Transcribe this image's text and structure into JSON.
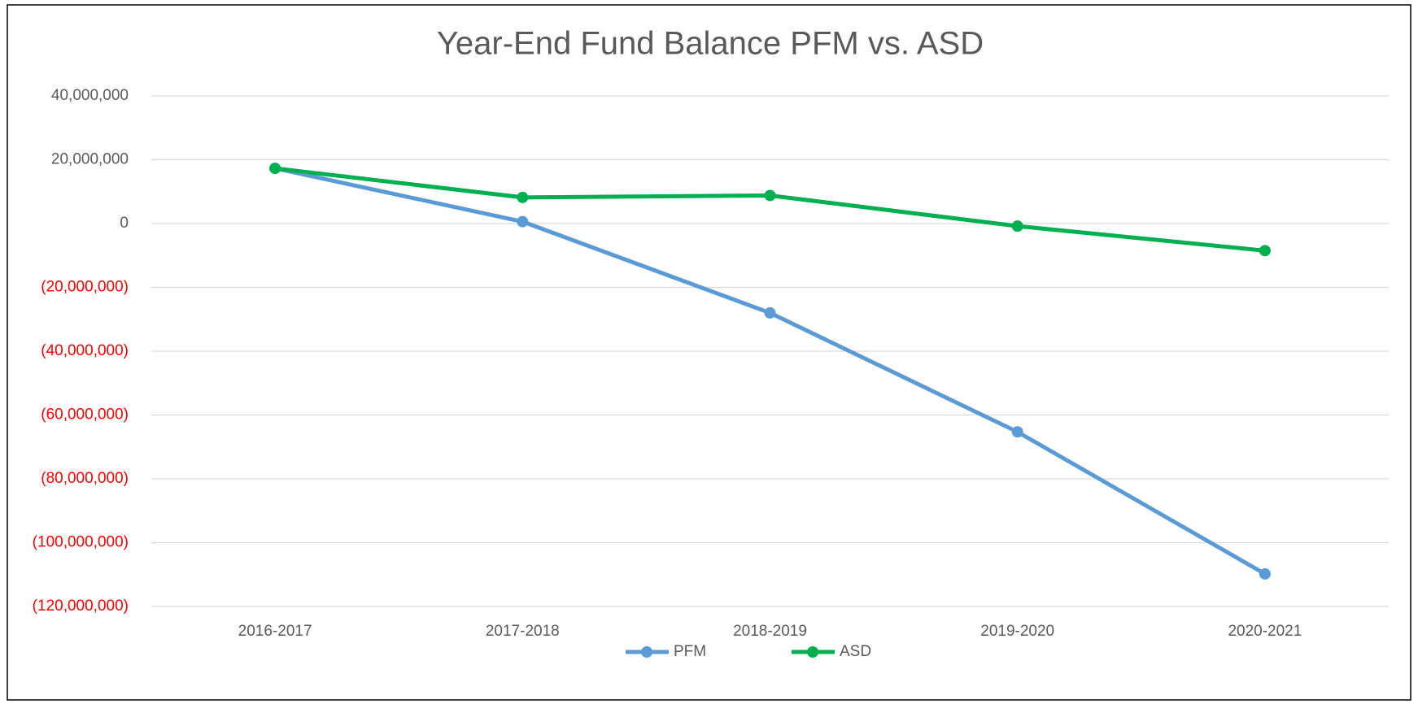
{
  "chart_data": {
    "type": "line",
    "title": "Year-End Fund Balance PFM vs. ASD",
    "categories": [
      "2016-2017",
      "2017-2018",
      "2018-2019",
      "2019-2020",
      "2020-2021"
    ],
    "series": [
      {
        "name": "PFM",
        "color": "#5b9bd5",
        "values": [
          17300000,
          600000,
          -28000000,
          -65300000,
          -109800000
        ]
      },
      {
        "name": "ASD",
        "color": "#00b050",
        "values": [
          17300000,
          8200000,
          8800000,
          -800000,
          -8500000
        ]
      }
    ],
    "ylim": [
      -120000000,
      40000000
    ],
    "yticks": [
      {
        "value": 40000000,
        "label": "40,000,000"
      },
      {
        "value": 20000000,
        "label": "20,000,000"
      },
      0,
      {
        "value": -20000000,
        "label": "(20,000,000)"
      },
      {
        "value": -40000000,
        "label": "(40,000,000)"
      },
      {
        "value": -60000000,
        "label": "(60,000,000)"
      },
      {
        "value": -80000000,
        "label": "(80,000,000)"
      },
      {
        "value": -100000000,
        "label": "(100,000,000)"
      },
      {
        "value": -120000000,
        "label": "(120,000,000)"
      }
    ],
    "negative_tick_color": "#ff0000",
    "grid": true,
    "legend": "bottom"
  }
}
